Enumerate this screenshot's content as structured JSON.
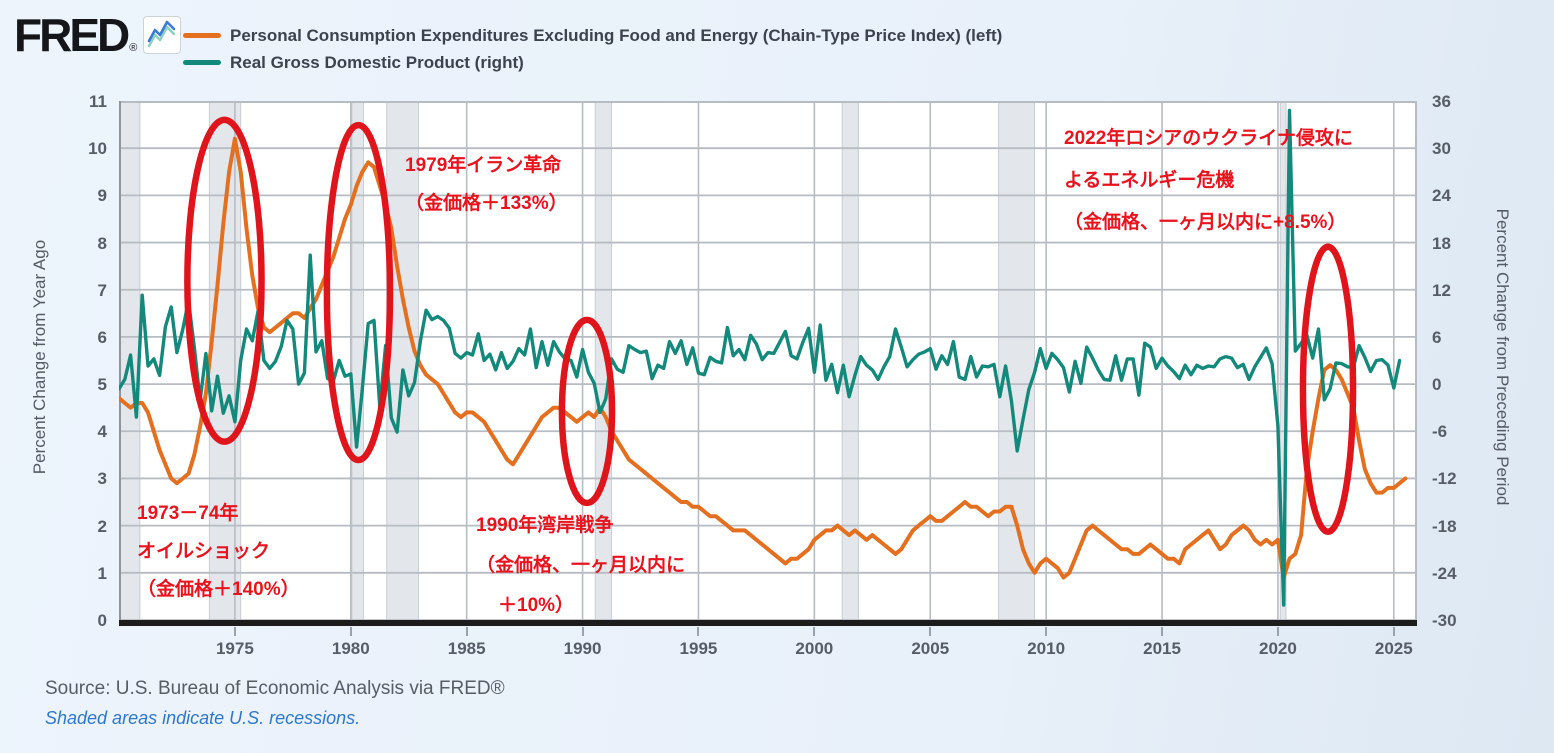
{
  "header": {
    "logo_text": "FRED",
    "logo_reg": "®",
    "legend": [
      {
        "label": "Personal Consumption Expenditures Excluding Food and Energy (Chain-Type Price Index) (left)",
        "color": "#e4701f"
      },
      {
        "label": "Real Gross Domestic Product (right)",
        "color": "#13897b"
      }
    ]
  },
  "chart_data": {
    "type": "line",
    "x_start": 1970,
    "x_step": 0.25,
    "x_range": [
      1970,
      2026
    ],
    "x_ticks": [
      1975,
      1980,
      1985,
      1990,
      1995,
      2000,
      2005,
      2010,
      2015,
      2020,
      2025
    ],
    "left_axis": {
      "label": "Percent Change from Year Ago",
      "min": 0,
      "max": 11,
      "ticks": [
        0,
        1,
        2,
        3,
        4,
        5,
        6,
        7,
        8,
        9,
        10,
        11
      ]
    },
    "right_axis": {
      "label": "Percent Change from Preceding Period",
      "min": -30,
      "max": 36,
      "ticks": [
        36,
        30,
        24,
        18,
        12,
        6,
        0,
        -6,
        -12,
        -18,
        -24,
        -30
      ]
    },
    "grid": true,
    "colors": {
      "pce": "#e4701f",
      "gdp": "#13897b",
      "highlight": "#e0151c",
      "recession_band": "#e3e7ec",
      "recession_border": "#c9ced4",
      "gridline": "#b7bcc2",
      "plot_bg": "#ffffff",
      "axis_line": "#1c1c1c"
    },
    "series": [
      {
        "name": "Personal Consumption Expenditures Excluding Food and Energy (Chain-Type Price Index) (left)",
        "axis": "left",
        "color": "#e4701f",
        "values": [
          4.7,
          4.6,
          4.5,
          4.6,
          4.6,
          4.4,
          4.0,
          3.6,
          3.3,
          3.0,
          2.9,
          3.0,
          3.1,
          3.5,
          4.1,
          4.8,
          5.9,
          7.1,
          8.4,
          9.5,
          10.2,
          9.5,
          8.3,
          7.3,
          6.6,
          6.2,
          6.1,
          6.2,
          6.3,
          6.4,
          6.5,
          6.5,
          6.4,
          6.6,
          6.8,
          7.1,
          7.4,
          7.7,
          8.1,
          8.5,
          8.8,
          9.2,
          9.5,
          9.7,
          9.6,
          9.2,
          8.8,
          8.3,
          7.5,
          6.8,
          6.2,
          5.7,
          5.4,
          5.2,
          5.1,
          5.0,
          4.8,
          4.6,
          4.4,
          4.3,
          4.4,
          4.4,
          4.3,
          4.2,
          4.0,
          3.8,
          3.6,
          3.4,
          3.3,
          3.5,
          3.7,
          3.9,
          4.1,
          4.3,
          4.4,
          4.5,
          4.5,
          4.4,
          4.3,
          4.2,
          4.3,
          4.4,
          4.3,
          4.5,
          4.3,
          4.0,
          3.8,
          3.6,
          3.4,
          3.3,
          3.2,
          3.1,
          3.0,
          2.9,
          2.8,
          2.7,
          2.6,
          2.5,
          2.5,
          2.4,
          2.4,
          2.3,
          2.2,
          2.2,
          2.1,
          2.0,
          1.9,
          1.9,
          1.9,
          1.8,
          1.7,
          1.6,
          1.5,
          1.4,
          1.3,
          1.2,
          1.3,
          1.3,
          1.4,
          1.5,
          1.7,
          1.8,
          1.9,
          1.9,
          2.0,
          1.9,
          1.8,
          1.9,
          1.8,
          1.7,
          1.8,
          1.7,
          1.6,
          1.5,
          1.4,
          1.5,
          1.7,
          1.9,
          2.0,
          2.1,
          2.2,
          2.1,
          2.1,
          2.2,
          2.3,
          2.4,
          2.5,
          2.4,
          2.4,
          2.3,
          2.2,
          2.3,
          2.3,
          2.4,
          2.4,
          2.0,
          1.5,
          1.2,
          1.0,
          1.2,
          1.3,
          1.2,
          1.1,
          0.9,
          1.0,
          1.3,
          1.6,
          1.9,
          2.0,
          1.9,
          1.8,
          1.7,
          1.6,
          1.5,
          1.5,
          1.4,
          1.4,
          1.5,
          1.6,
          1.5,
          1.4,
          1.3,
          1.3,
          1.2,
          1.5,
          1.6,
          1.7,
          1.8,
          1.9,
          1.7,
          1.5,
          1.6,
          1.8,
          1.9,
          2.0,
          1.9,
          1.7,
          1.6,
          1.7,
          1.6,
          1.7,
          0.9,
          1.3,
          1.4,
          1.8,
          3.2,
          4.0,
          4.7,
          5.3,
          5.4,
          5.3,
          5.1,
          4.8,
          4.5,
          3.8,
          3.2,
          2.9,
          2.7,
          2.7,
          2.8,
          2.8,
          2.9,
          3.0
        ]
      },
      {
        "name": "Real Gross Domestic Product (right)",
        "axis": "right",
        "color": "#13897b",
        "values": [
          -0.6,
          0.6,
          3.7,
          -4.2,
          11.3,
          2.3,
          3.2,
          1.1,
          7.3,
          9.8,
          4.0,
          6.9,
          10.6,
          4.7,
          -2.1,
          3.9,
          -3.4,
          1.0,
          -3.7,
          -1.5,
          -4.8,
          3.0,
          7.0,
          5.5,
          9.3,
          3.0,
          2.0,
          2.9,
          4.8,
          8.1,
          7.0,
          0.0,
          1.4,
          16.4,
          4.1,
          5.5,
          0.7,
          0.4,
          3.0,
          1.0,
          1.3,
          -8.0,
          -0.5,
          7.7,
          8.1,
          -2.9,
          4.9,
          -4.3,
          -6.1,
          1.8,
          -1.5,
          0.2,
          5.4,
          9.4,
          8.2,
          8.6,
          8.1,
          7.1,
          3.9,
          3.3,
          4.0,
          3.7,
          6.4,
          3.0,
          3.8,
          1.8,
          4.0,
          2.0,
          2.9,
          4.5,
          3.7,
          7.0,
          2.1,
          5.4,
          2.4,
          5.4,
          4.1,
          3.2,
          3.0,
          0.9,
          4.4,
          1.5,
          0.1,
          -3.6,
          -1.9,
          3.2,
          1.9,
          1.5,
          4.9,
          4.4,
          4.0,
          4.2,
          0.7,
          2.4,
          2.0,
          5.4,
          3.9,
          5.5,
          2.5,
          4.6,
          1.4,
          1.2,
          3.4,
          2.9,
          2.7,
          7.2,
          3.6,
          4.4,
          3.1,
          6.2,
          5.1,
          3.1,
          4.0,
          3.9,
          5.3,
          6.7,
          3.6,
          3.2,
          5.3,
          7.1,
          1.5,
          7.5,
          0.5,
          2.5,
          -1.1,
          2.4,
          -1.6,
          1.1,
          3.5,
          2.4,
          1.8,
          0.6,
          2.2,
          3.5,
          7.0,
          4.7,
          2.2,
          3.1,
          3.8,
          4.1,
          4.5,
          1.9,
          3.6,
          2.5,
          5.4,
          0.9,
          0.6,
          3.5,
          0.9,
          2.3,
          2.2,
          2.5,
          -1.6,
          2.3,
          -2.1,
          -8.5,
          -4.5,
          -0.7,
          1.5,
          4.5,
          2.0,
          3.9,
          3.1,
          2.1,
          -1.0,
          2.9,
          0.1,
          4.7,
          3.3,
          1.8,
          0.6,
          0.5,
          3.6,
          0.5,
          3.2,
          3.2,
          -1.4,
          5.2,
          4.7,
          2.0,
          3.3,
          2.3,
          1.6,
          0.7,
          2.4,
          1.2,
          2.4,
          2.0,
          2.3,
          2.2,
          3.2,
          3.5,
          3.3,
          2.1,
          2.5,
          0.6,
          2.2,
          3.4,
          4.6,
          2.6,
          -5.3,
          -28.1,
          34.8,
          4.2,
          5.2,
          6.2,
          3.3,
          7.0,
          -2.0,
          -0.6,
          2.7,
          2.6,
          2.2,
          2.1,
          4.9,
          3.4,
          1.6,
          3.0,
          3.1,
          2.4,
          -0.5,
          3.0
        ]
      }
    ],
    "recessions": [
      [
        1970.0,
        1970.9
      ],
      [
        1973.9,
        1975.25
      ],
      [
        1980.05,
        1980.55
      ],
      [
        1981.55,
        1982.92
      ],
      [
        1990.55,
        1991.25
      ],
      [
        2001.2,
        2001.9
      ],
      [
        2007.95,
        2009.5
      ],
      [
        2020.1,
        2020.35
      ]
    ],
    "highlight_ellipses": [
      {
        "cx_year": 1974.55,
        "cy_left": 7.19,
        "rx_years": 1.6,
        "ry_left": 3.41
      },
      {
        "cx_year": 1980.33,
        "cy_left": 6.94,
        "rx_years": 1.36,
        "ry_left": 3.55
      },
      {
        "cx_year": 1990.19,
        "cy_left": 4.42,
        "rx_years": 1.08,
        "ry_left": 1.94
      },
      {
        "cx_year": 2022.16,
        "cy_left": 4.89,
        "rx_years": 1.08,
        "ry_left": 3.02
      }
    ]
  },
  "annotations": [
    {
      "lines": [
        "1973－74年",
        "オイルショック",
        "（金価格＋140%）"
      ]
    },
    {
      "lines": [
        "1979年イラン革命",
        "（金価格＋133%）"
      ]
    },
    {
      "lines": [
        "1990年湾岸戦争",
        "（金価格、一ヶ月以内に",
        "＋10%）"
      ]
    },
    {
      "lines": [
        "2022年ロシアのウクライナ侵攻に",
        "よるエネルギー危機",
        "（金価格、一ヶ月以内に+8.5%）"
      ]
    }
  ],
  "footer": {
    "source": "Source: U.S. Bureau of Economic Analysis via FRED®",
    "note": "Shaded areas indicate U.S. recessions."
  }
}
